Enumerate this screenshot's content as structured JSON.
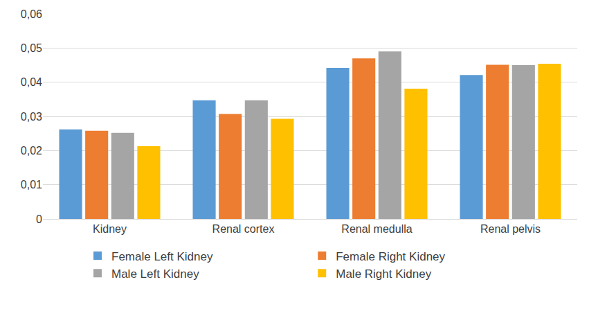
{
  "chart_data": {
    "type": "bar",
    "categories": [
      "Kidney",
      "Renal cortex",
      "Renal medulla",
      "Renal pelvis"
    ],
    "series": [
      {
        "name": "Female Left Kidney",
        "color": "#5b9bd5",
        "values": [
          0.0262,
          0.0347,
          0.0442,
          0.0421
        ]
      },
      {
        "name": "Female Right Kidney",
        "color": "#ed7d31",
        "values": [
          0.0258,
          0.0307,
          0.047,
          0.0451
        ]
      },
      {
        "name": "Male Left Kidney",
        "color": "#a5a5a5",
        "values": [
          0.0252,
          0.0347,
          0.049,
          0.045
        ]
      },
      {
        "name": "Male Right Kidney",
        "color": "#ffc000",
        "values": [
          0.0213,
          0.0293,
          0.0381,
          0.0454
        ]
      }
    ],
    "ylim": [
      0,
      0.06
    ],
    "yticks": [
      0,
      {
        "value": 0.01,
        "label": "0,01"
      },
      {
        "value": 0.02,
        "label": "0,02"
      },
      {
        "value": 0.03,
        "label": "0,03"
      },
      {
        "value": 0.04,
        "label": "0,04"
      },
      {
        "value": 0.05,
        "label": "0,05"
      },
      {
        "value": 0.06,
        "label": "0,06"
      }
    ],
    "grid": true,
    "legend": "bottom"
  }
}
